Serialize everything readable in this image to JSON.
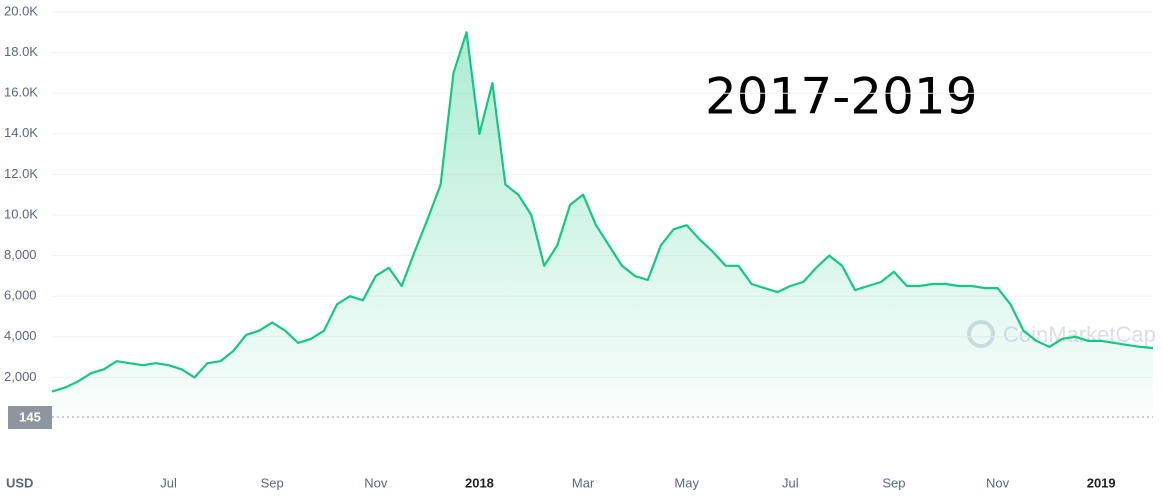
{
  "chart_data": {
    "type": "line",
    "annotations": [
      "2017-2019",
      "USD",
      "145",
      "CoinMarketCap"
    ],
    "categories": [
      null,
      null,
      null,
      null,
      null,
      null,
      null,
      null,
      null,
      "Jul",
      null,
      null,
      null,
      null,
      null,
      null,
      null,
      "Sep",
      null,
      null,
      null,
      null,
      null,
      null,
      null,
      "Nov",
      null,
      null,
      null,
      null,
      null,
      null,
      null,
      "2018",
      null,
      null,
      null,
      null,
      null,
      null,
      null,
      "Mar",
      null,
      null,
      null,
      null,
      null,
      null,
      null,
      "May",
      null,
      null,
      null,
      null,
      null,
      null,
      null,
      "Jul",
      null,
      null,
      null,
      null,
      null,
      null,
      null,
      "Sep",
      null,
      null,
      null,
      null,
      null,
      null,
      null,
      "Nov",
      null,
      null,
      null,
      null,
      null,
      null,
      null,
      "2019",
      null,
      null,
      null,
      null
    ],
    "series": [
      {
        "color": "#16c784",
        "values": [
          1300,
          1500,
          1800,
          2200,
          2400,
          2800,
          2700,
          2600,
          2700,
          2600,
          2400,
          2000,
          2700,
          2800,
          3300,
          4100,
          4300,
          4700,
          4300,
          3700,
          3900,
          4300,
          5600,
          6000,
          5800,
          7000,
          7400,
          6500,
          8200,
          9800,
          11500,
          17000,
          19000,
          14000,
          16500,
          11500,
          11000,
          10000,
          7500,
          8500,
          10500,
          11000,
          9500,
          8500,
          7500,
          7000,
          6800,
          8500,
          9300,
          9500,
          8800,
          8200,
          7500,
          7500,
          6600,
          6400,
          6200,
          6500,
          6700,
          7400,
          8000,
          7500,
          6300,
          6500,
          6700,
          7200,
          6500,
          6500,
          6600,
          6600,
          6500,
          6500,
          6400,
          6400,
          5600,
          4300,
          3800,
          3500,
          3900,
          4000,
          3800,
          3800,
          3700,
          3600,
          3500,
          3450
        ]
      }
    ],
    "ylim": [
      0,
      20000
    ],
    "yticks": [
      {
        "value": 2000,
        "label": "2,000"
      },
      {
        "value": 4000,
        "label": "4,000"
      },
      {
        "value": 6000,
        "label": "6,000"
      },
      {
        "value": 8000,
        "label": "8,000"
      },
      {
        "value": 10000,
        "label": "10.0K"
      },
      {
        "value": 12000,
        "label": "12.0K"
      },
      {
        "value": 14000,
        "label": "14.0K"
      },
      {
        "value": 16000,
        "label": "16.0K"
      },
      {
        "value": 18000,
        "label": "18.0K"
      },
      {
        "value": 20000,
        "label": "20.0K"
      }
    ],
    "grid": true
  }
}
